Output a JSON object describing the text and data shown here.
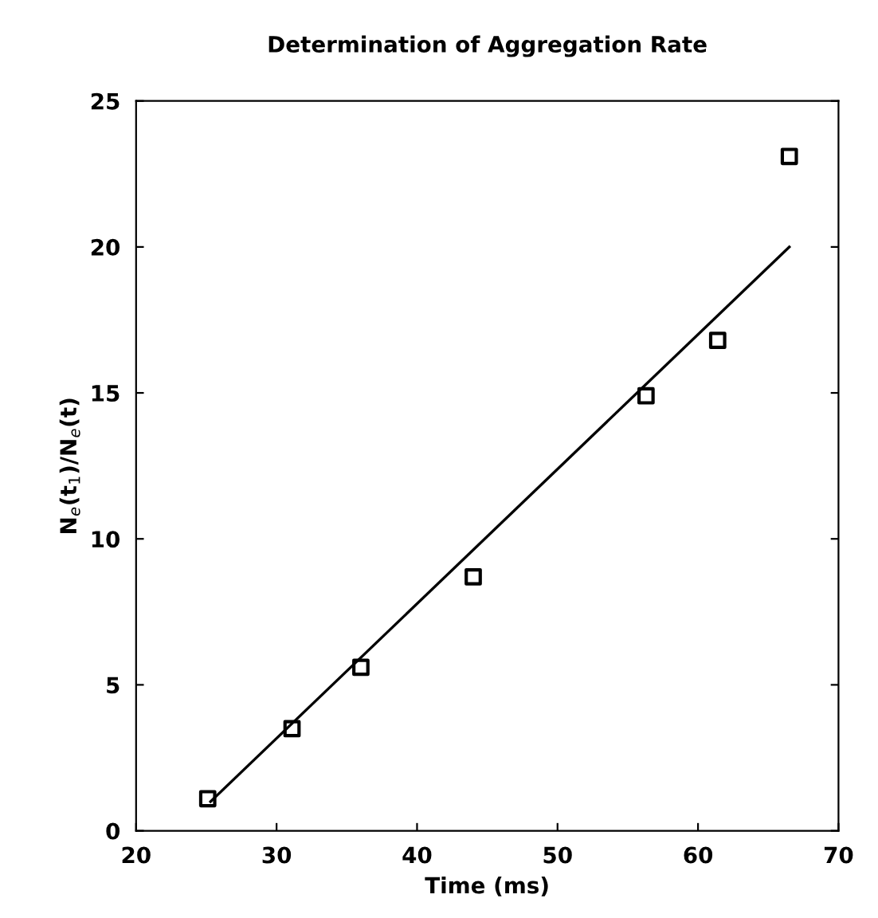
{
  "chart_data": {
    "type": "scatter",
    "title": "Determination of Aggregation Rate",
    "xlabel": "Time (ms)",
    "ylabel": "N$_{e}$(t$_{1}$)/N$_{e}$(t)",
    "series": [
      {
        "color": "#000000",
        "marker": "square",
        "x": [
          25.1,
          31.1,
          36.0,
          44.0,
          56.3,
          61.4,
          66.5
        ],
        "values": [
          1.1,
          3.5,
          5.6,
          8.7,
          14.9,
          16.8,
          23.1
        ]
      },
      {
        "type": "line",
        "color": "#000000",
        "marker": "none",
        "line_style": "solid",
        "x": [
          25.3,
          66.5
        ],
        "values": [
          1.0,
          20.0
        ]
      }
    ],
    "xlim": [
      20,
      70
    ],
    "xticks": [
      20,
      30,
      40,
      50,
      60,
      70
    ],
    "ylim": [
      0,
      25
    ],
    "yticks": [
      0,
      5,
      10,
      15,
      20,
      25
    ],
    "grid": false,
    "legend": false
  }
}
